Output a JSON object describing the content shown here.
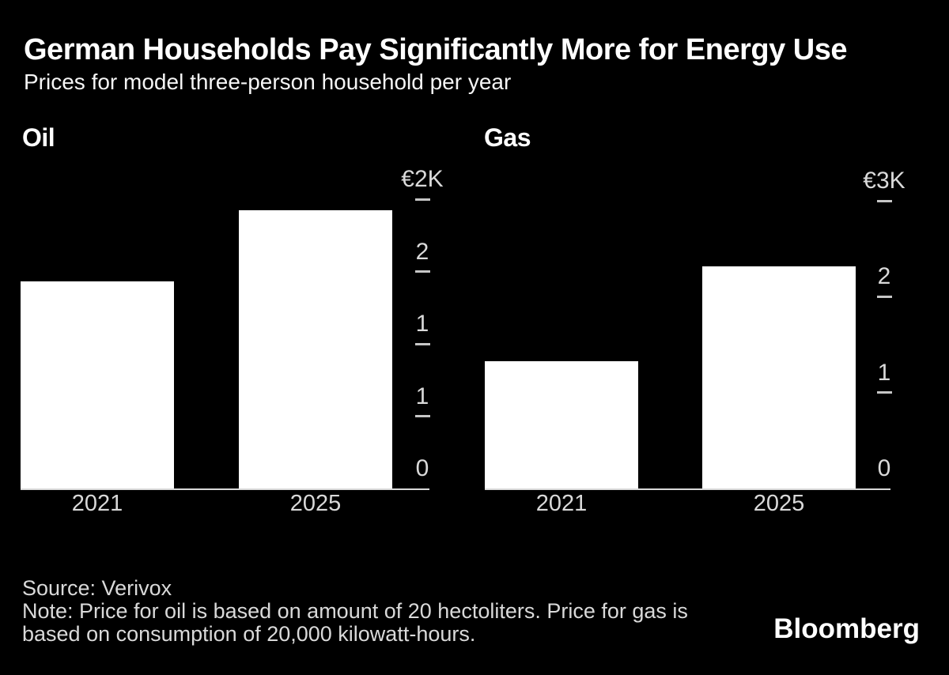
{
  "header": {
    "title": "German Households Pay Significantly More for Energy Use",
    "subtitle": "Prices for model three-person household per year"
  },
  "footer": {
    "source": "Source: Verivox",
    "note_lines": [
      "Note: Price for oil is based on amount of 20 hectoliters. Price for gas is",
      "based on consumption of 20,000 kilowatt-hours."
    ],
    "brand": "Bloomberg"
  },
  "colors": {
    "background": "#000000",
    "bar": "#ffffff",
    "primary_text": "#ffffff",
    "secondary_text": "#d9d9d9",
    "tick": "#c6c6c6",
    "axis_line": "#d9d9d9"
  },
  "chart_data": [
    {
      "type": "bar",
      "title": "Oil",
      "currency": "EUR",
      "categories": [
        "2021",
        "2025"
      ],
      "values": [
        1430,
        1925
      ],
      "ylim": [
        0,
        2000
      ],
      "grid": false,
      "legend": false,
      "bar_color": "#ffffff",
      "yticks": [
        {
          "value": 2000,
          "label": "€2K"
        },
        {
          "value": 1500,
          "label": "2"
        },
        {
          "value": 1000,
          "label": "1"
        },
        {
          "value": 500,
          "label": "1"
        },
        {
          "value": 0,
          "label": "0"
        }
      ]
    },
    {
      "type": "bar",
      "title": "Gas",
      "currency": "EUR",
      "categories": [
        "2021",
        "2025"
      ],
      "values": [
        1330,
        2320
      ],
      "ylim": [
        0,
        3000
      ],
      "grid": false,
      "legend": false,
      "bar_color": "#ffffff",
      "yticks": [
        {
          "value": 3000,
          "label": "€3K"
        },
        {
          "value": 2000,
          "label": "2"
        },
        {
          "value": 1000,
          "label": "1"
        },
        {
          "value": 0,
          "label": "0"
        }
      ]
    }
  ]
}
